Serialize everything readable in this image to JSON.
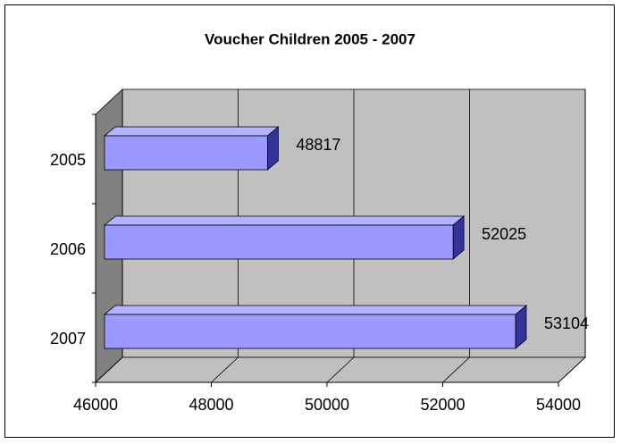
{
  "chart_data": {
    "type": "bar",
    "title": "Voucher Children  2005 - 2007",
    "categories": [
      "2005",
      "2006",
      "2007"
    ],
    "values": [
      48817,
      52025,
      53104
    ],
    "color": "#9999ff",
    "xlim": [
      46000,
      54000
    ],
    "xticks": [
      46000,
      48000,
      50000,
      52000,
      54000
    ],
    "grid": true
  }
}
